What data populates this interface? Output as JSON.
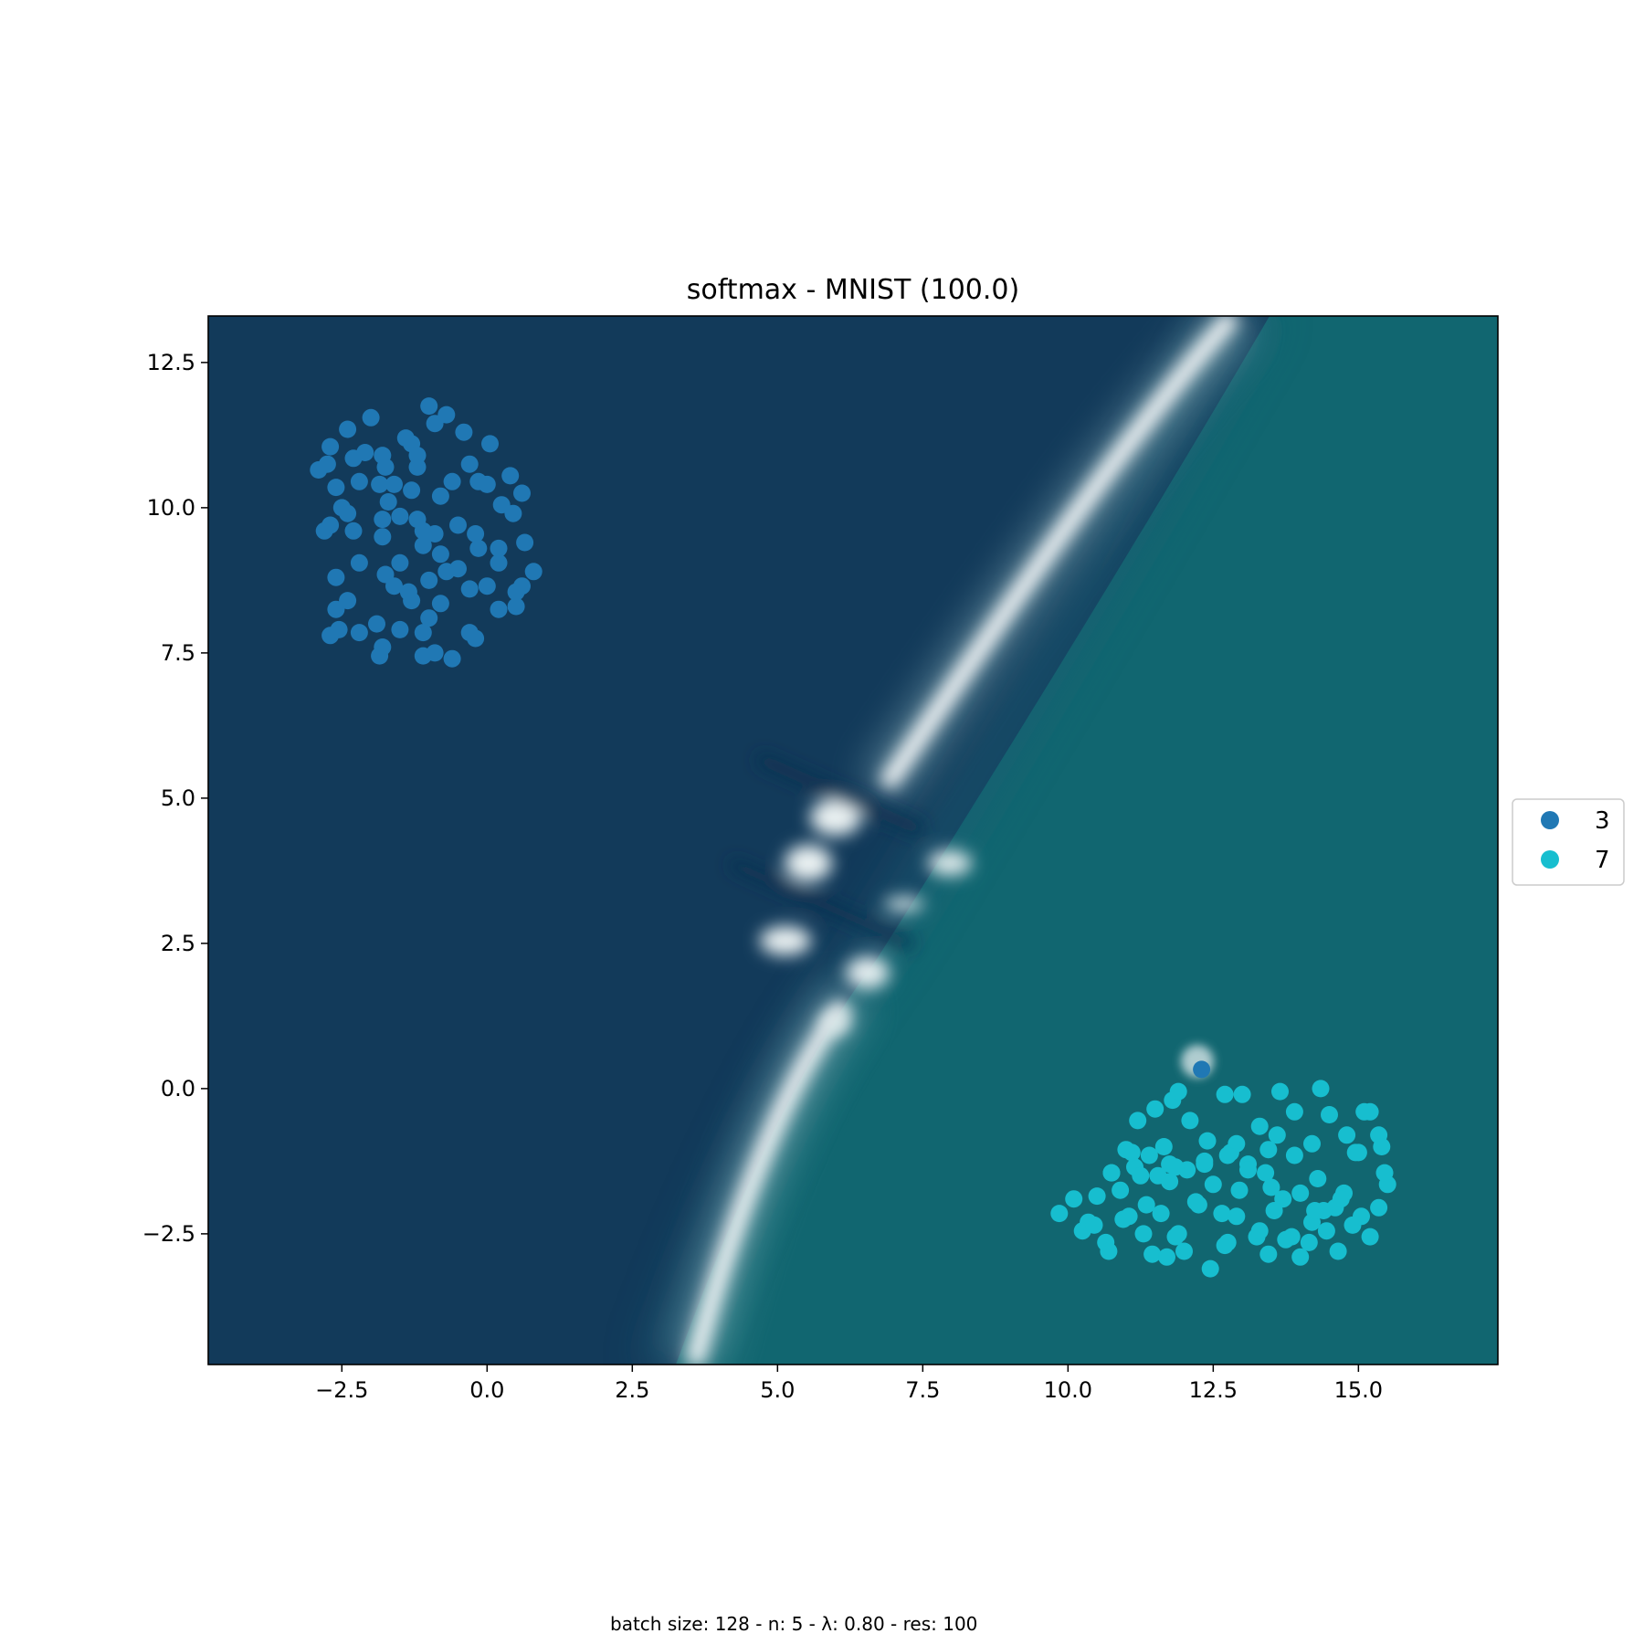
{
  "chart_data": {
    "type": "scatter",
    "title": "softmax - MNIST (100.0)",
    "caption": "batch size: 128 - n: 5 - λ: 0.80 - res: 100",
    "xlabel": "",
    "ylabel": "",
    "xlim": [
      -4.8,
      17.4
    ],
    "ylim": [
      -4.75,
      13.3
    ],
    "xticks": [
      -2.5,
      0.0,
      2.5,
      5.0,
      7.5,
      10.0,
      12.5,
      15.0
    ],
    "xtick_labels": [
      "−2.5",
      "0.0",
      "2.5",
      "5.0",
      "7.5",
      "10.0",
      "12.5",
      "15.0"
    ],
    "yticks": [
      -2.5,
      0.0,
      2.5,
      5.0,
      7.5,
      10.0,
      12.5
    ],
    "ytick_labels": [
      "−2.5",
      "0.0",
      "2.5",
      "5.0",
      "7.5",
      "10.0",
      "12.5"
    ],
    "grid": false,
    "legend_placement": "right, outside axes",
    "background": {
      "kind": "decision-surface",
      "class_regions": [
        "3",
        "7"
      ],
      "colors": {
        "class_3": "#123a5a",
        "class_7": "#116670",
        "boundary": "#f4f7f8"
      }
    },
    "series": [
      {
        "name": "3",
        "color": "#2078b4",
        "x": [
          -2.9,
          -2.7,
          -2.6,
          -2.4,
          -2.3,
          -2.1,
          -2.0,
          -1.8,
          -1.75,
          -1.6,
          -1.4,
          -1.3,
          -1.2,
          -1.0,
          -0.9,
          -0.7,
          -0.4,
          0.05,
          -2.75,
          -2.5,
          -2.2,
          -1.85,
          -1.7,
          -1.3,
          -1.2,
          -0.8,
          -0.6,
          -0.3,
          0.0,
          0.4,
          0.6,
          -2.8,
          -2.4,
          -1.8,
          -1.5,
          -1.2,
          -1.1,
          -0.9,
          -0.5,
          -0.2,
          0.2,
          0.45,
          -2.7,
          -2.3,
          -1.8,
          -1.5,
          -1.1,
          -0.8,
          -0.5,
          -0.15,
          0.2,
          0.65,
          -2.6,
          -2.2,
          -1.75,
          -1.35,
          -1.0,
          -0.7,
          -0.3,
          0.0,
          0.5,
          0.8,
          -2.6,
          -2.4,
          -1.9,
          -1.6,
          -1.3,
          -1.0,
          -0.8,
          -0.3,
          0.2,
          0.5,
          -2.7,
          -2.2,
          -1.8,
          -1.5,
          -1.1,
          -0.9,
          -0.6,
          -0.2,
          -1.85,
          -1.1,
          -0.15,
          -2.55,
          0.25,
          0.6
        ],
        "y": [
          10.65,
          11.05,
          10.35,
          11.35,
          10.85,
          10.95,
          11.55,
          10.9,
          10.7,
          10.4,
          11.2,
          11.1,
          10.9,
          11.75,
          11.45,
          11.6,
          11.3,
          11.1,
          10.75,
          10.0,
          10.45,
          10.4,
          10.1,
          10.3,
          10.7,
          10.2,
          10.45,
          10.75,
          10.4,
          10.55,
          10.25,
          9.6,
          9.9,
          9.8,
          9.85,
          9.8,
          9.6,
          9.55,
          9.7,
          9.55,
          9.3,
          9.9,
          9.7,
          9.6,
          9.5,
          9.05,
          9.35,
          9.2,
          8.95,
          9.3,
          9.05,
          9.4,
          8.8,
          9.05,
          8.85,
          8.55,
          8.75,
          8.9,
          8.6,
          8.65,
          8.55,
          8.9,
          8.25,
          8.4,
          8.0,
          8.65,
          8.4,
          8.1,
          8.35,
          7.85,
          8.25,
          8.3,
          7.8,
          7.85,
          7.6,
          7.9,
          7.85,
          7.5,
          7.4,
          7.75,
          7.45,
          7.45,
          10.45,
          7.9,
          10.05,
          8.65
        ]
      },
      {
        "name": "7",
        "color": "#17becf",
        "x": [
          9.85,
          10.1,
          10.25,
          10.35,
          10.5,
          10.65,
          10.75,
          10.9,
          11.05,
          11.15,
          11.25,
          11.35,
          11.45,
          11.6,
          11.75,
          11.9,
          12.05,
          12.2,
          12.35,
          12.5,
          12.65,
          12.8,
          12.95,
          13.1,
          13.25,
          13.4,
          13.55,
          13.7,
          13.85,
          14.0,
          14.15,
          14.3,
          14.45,
          14.6,
          14.75,
          14.9,
          15.05,
          15.2,
          15.35,
          15.5,
          10.45,
          10.7,
          10.95,
          11.1,
          11.3,
          11.55,
          11.7,
          11.85,
          12.0,
          12.25,
          12.45,
          12.7,
          12.9,
          13.1,
          13.3,
          13.5,
          13.75,
          14.0,
          14.2,
          14.4,
          14.65,
          14.95,
          15.2,
          15.45,
          11.2,
          11.5,
          11.8,
          12.1,
          12.4,
          12.7,
          13.0,
          13.3,
          13.6,
          13.9,
          14.2,
          14.5,
          14.8,
          15.1,
          15.35,
          11.0,
          11.65,
          12.35,
          13.65,
          14.35,
          11.4,
          11.9,
          12.9,
          13.9,
          14.25,
          15.0,
          10.75,
          11.75,
          12.75,
          13.45,
          14.7,
          15.4,
          11.85,
          12.75,
          13.45
        ],
        "y": [
          -2.15,
          -1.9,
          -2.45,
          -2.3,
          -1.85,
          -2.65,
          -1.45,
          -1.75,
          -2.2,
          -1.35,
          -1.5,
          -2.0,
          -2.85,
          -2.15,
          -1.3,
          -2.5,
          -1.4,
          -1.95,
          -1.3,
          -1.65,
          -2.15,
          -1.1,
          -1.75,
          -1.3,
          -2.55,
          -1.45,
          -2.1,
          -1.9,
          -2.55,
          -1.8,
          -2.65,
          -1.55,
          -2.45,
          -2.05,
          -1.8,
          -2.35,
          -2.2,
          -2.55,
          -2.05,
          -1.65,
          -2.35,
          -2.8,
          -2.25,
          -1.1,
          -2.5,
          -1.5,
          -2.9,
          -1.35,
          -2.8,
          -2.0,
          -3.1,
          -2.7,
          -2.2,
          -1.4,
          -2.45,
          -1.7,
          -2.6,
          -2.9,
          -2.3,
          -2.1,
          -2.8,
          -1.1,
          -0.4,
          -1.45,
          -0.55,
          -0.35,
          -0.2,
          -0.55,
          -0.9,
          -0.1,
          -0.1,
          -0.65,
          -0.8,
          -0.4,
          -0.95,
          -0.45,
          -0.8,
          -0.4,
          -0.8,
          -1.05,
          -1.0,
          -1.25,
          -0.05,
          0.0,
          -1.15,
          -0.05,
          -0.95,
          -1.15,
          -2.1,
          -1.1,
          -1.45,
          -1.6,
          -1.15,
          -1.05,
          -1.9,
          -1.0,
          -2.55,
          -2.65,
          -2.85
        ]
      },
      {
        "name": "3",
        "color": "#2078b4",
        "x": [
          12.3
        ],
        "y": [
          0.33
        ]
      }
    ]
  }
}
